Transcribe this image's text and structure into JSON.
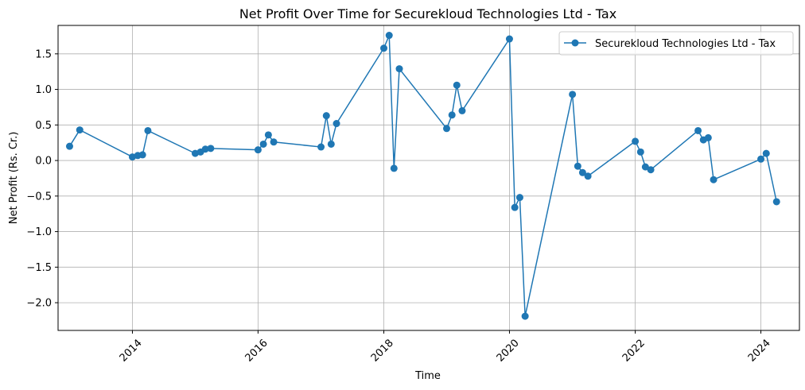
{
  "chart_data": {
    "type": "line",
    "title": "Net Profit Over Time for Securekloud Technologies Ltd - Tax",
    "xlabel": "Time",
    "ylabel": "Net Profit (Rs. Cr.)",
    "x_tick_labels": [
      "2014",
      "2016",
      "2018",
      "2020",
      "2022",
      "2024"
    ],
    "y_tick_labels": [
      "−2.0",
      "−1.5",
      "−1.0",
      "−0.5",
      "0.0",
      "0.5",
      "1.0",
      "1.5"
    ],
    "xlim": [
      "2012-10-26",
      "2024-08-12"
    ],
    "ylim": [
      -2.39,
      1.9
    ],
    "grid": true,
    "legend_position": "top-right",
    "colors": {
      "series": "#1f77b4",
      "grid": "#b0b0b0",
      "axis": "#000000"
    },
    "series": [
      {
        "name": "Securekloud Technologies Ltd - Tax",
        "points": [
          {
            "x": "2013-01-01",
            "y": 0.2
          },
          {
            "x": "2013-03-01",
            "y": 0.43
          },
          {
            "x": "2014-01-01",
            "y": 0.05
          },
          {
            "x": "2014-02-01",
            "y": 0.07
          },
          {
            "x": "2014-03-01",
            "y": 0.08
          },
          {
            "x": "2014-04-01",
            "y": 0.42
          },
          {
            "x": "2015-01-01",
            "y": 0.1
          },
          {
            "x": "2015-02-01",
            "y": 0.12
          },
          {
            "x": "2015-03-01",
            "y": 0.16
          },
          {
            "x": "2015-04-01",
            "y": 0.17
          },
          {
            "x": "2016-01-01",
            "y": 0.15
          },
          {
            "x": "2016-02-01",
            "y": 0.23
          },
          {
            "x": "2016-03-01",
            "y": 0.36
          },
          {
            "x": "2016-04-01",
            "y": 0.26
          },
          {
            "x": "2017-01-01",
            "y": 0.19
          },
          {
            "x": "2017-02-01",
            "y": 0.63
          },
          {
            "x": "2017-03-01",
            "y": 0.23
          },
          {
            "x": "2017-04-01",
            "y": 0.52
          },
          {
            "x": "2018-01-01",
            "y": 1.58
          },
          {
            "x": "2018-02-01",
            "y": 1.76
          },
          {
            "x": "2018-03-01",
            "y": -0.11
          },
          {
            "x": "2018-04-01",
            "y": 1.29
          },
          {
            "x": "2019-01-01",
            "y": 0.45
          },
          {
            "x": "2019-02-01",
            "y": 0.64
          },
          {
            "x": "2019-03-01",
            "y": 1.06
          },
          {
            "x": "2019-04-01",
            "y": 0.7
          },
          {
            "x": "2020-01-01",
            "y": 1.71
          },
          {
            "x": "2020-02-01",
            "y": -0.66
          },
          {
            "x": "2020-03-01",
            "y": -0.52
          },
          {
            "x": "2020-04-01",
            "y": -2.19
          },
          {
            "x": "2021-01-01",
            "y": 0.93
          },
          {
            "x": "2021-02-01",
            "y": -0.08
          },
          {
            "x": "2021-03-01",
            "y": -0.17
          },
          {
            "x": "2021-04-01",
            "y": -0.22
          },
          {
            "x": "2022-01-01",
            "y": 0.27
          },
          {
            "x": "2022-02-01",
            "y": 0.12
          },
          {
            "x": "2022-03-01",
            "y": -0.09
          },
          {
            "x": "2022-04-01",
            "y": -0.13
          },
          {
            "x": "2023-01-01",
            "y": 0.42
          },
          {
            "x": "2023-02-01",
            "y": 0.29
          },
          {
            "x": "2023-03-01",
            "y": 0.32
          },
          {
            "x": "2023-04-01",
            "y": -0.27
          },
          {
            "x": "2024-01-01",
            "y": 0.02
          },
          {
            "x": "2024-02-01",
            "y": 0.1
          },
          {
            "x": "2024-04-01",
            "y": -0.58
          }
        ]
      }
    ]
  }
}
